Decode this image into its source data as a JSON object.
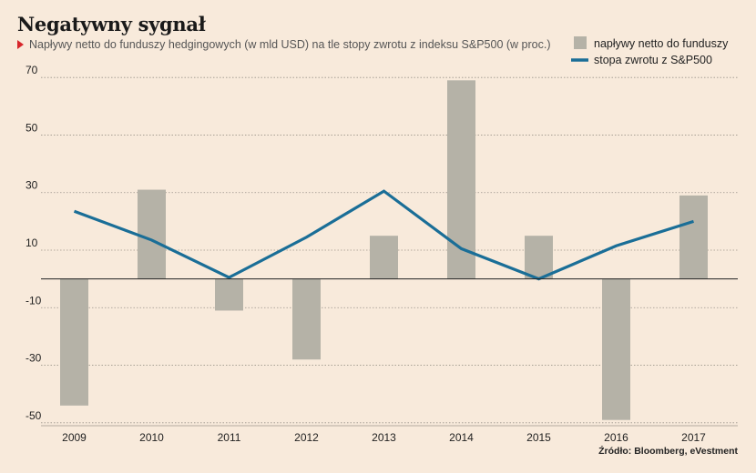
{
  "header": {
    "title": "Negatywny sygnał",
    "subtitle": "Napływy netto do funduszy hedgingowych (w mld USD) na tle stopy zwrotu z indeksu S&P500 (w proc.)"
  },
  "source": "Źródło: Bloomberg, eVestment",
  "chart_data": {
    "type": "bar",
    "categories": [
      "2009",
      "2010",
      "2011",
      "2012",
      "2013",
      "2014",
      "2015",
      "2016",
      "2017"
    ],
    "series": [
      {
        "name": "napływy netto do funduszy",
        "type": "bar",
        "color": "#b5b2a7",
        "values": [
          -44,
          31,
          -11,
          -28,
          15,
          69,
          15,
          -49,
          29
        ]
      },
      {
        "name": "stopa zwrotu z S&P500",
        "type": "line",
        "color": "#1a6e97",
        "values": [
          23.5,
          13.5,
          0.5,
          14.5,
          30.5,
          10.5,
          0,
          11.5,
          20
        ]
      }
    ],
    "yticks": [
      70,
      50,
      30,
      10,
      -10,
      -30,
      -50
    ],
    "ylim": [
      -51,
      71
    ],
    "grid": true,
    "legend_position": "top-right"
  }
}
